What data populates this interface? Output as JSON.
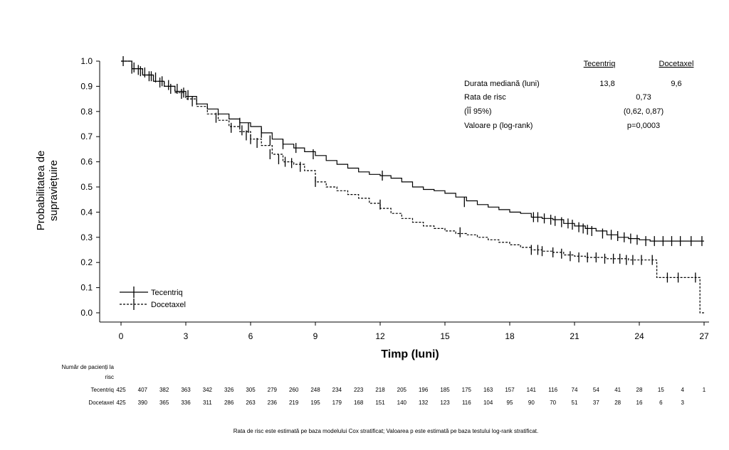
{
  "chart_data": {
    "type": "line",
    "xlabel": "Timp (luni)",
    "ylabel": [
      "Probabilitatea de",
      "supraviețuire"
    ],
    "xlim": [
      0,
      27
    ],
    "ylim": [
      0,
      1.0
    ],
    "x_ticks": [
      "0",
      "3",
      "6",
      "9",
      "12",
      "15",
      "18",
      "21",
      "24",
      "27"
    ],
    "y_ticks": [
      "0.0",
      "0.1",
      "0.2",
      "0.3",
      "0.4",
      "0.5",
      "0.6",
      "0.7",
      "0.8",
      "0.9",
      "1.0"
    ],
    "series": [
      {
        "name": "Tecentriq",
        "style": "solid",
        "x": [
          0,
          0.5,
          1,
          1.5,
          2,
          2.5,
          3,
          3.5,
          4,
          4.5,
          5,
          5.5,
          6,
          6.5,
          7,
          7.5,
          8,
          8.5,
          9,
          9.5,
          10,
          10.5,
          11,
          11.5,
          12,
          12.5,
          13,
          13.5,
          14,
          14.5,
          15,
          15.5,
          16,
          16.5,
          17,
          17.5,
          18,
          18.5,
          19,
          19.5,
          20,
          20.5,
          21,
          21.5,
          22,
          22.5,
          23,
          23.5,
          24,
          24.5,
          25,
          25.5,
          26,
          26.5,
          27
        ],
        "y": [
          1.0,
          0.97,
          0.945,
          0.92,
          0.9,
          0.88,
          0.86,
          0.83,
          0.81,
          0.79,
          0.77,
          0.755,
          0.74,
          0.715,
          0.69,
          0.67,
          0.655,
          0.64,
          0.625,
          0.605,
          0.59,
          0.575,
          0.56,
          0.55,
          0.545,
          0.535,
          0.52,
          0.5,
          0.49,
          0.485,
          0.475,
          0.46,
          0.445,
          0.43,
          0.42,
          0.41,
          0.4,
          0.395,
          0.38,
          0.375,
          0.37,
          0.355,
          0.345,
          0.335,
          0.325,
          0.31,
          0.3,
          0.295,
          0.29,
          0.285,
          0.285,
          0.285,
          0.285,
          0.285,
          0.285
        ],
        "censor_x": [
          0.1,
          0.6,
          0.8,
          1.1,
          1.4,
          1.6,
          1.9,
          2.2,
          2.6,
          2.9,
          3.1,
          5.5,
          5.9,
          6.5,
          6.9,
          7.5,
          8.1,
          8.9,
          12.1,
          15.9,
          19.1,
          19.3,
          19.6,
          19.9,
          20.1,
          20.4,
          20.7,
          20.9,
          21.2,
          21.4,
          21.6,
          21.8,
          22.3,
          22.7,
          23.0,
          23.3,
          23.6,
          23.9,
          24.3,
          24.7,
          25.1,
          25.5,
          25.9,
          26.4,
          26.9
        ],
        "censor_y": [
          1.0,
          0.975,
          0.965,
          0.955,
          0.94,
          0.935,
          0.92,
          0.905,
          0.89,
          0.875,
          0.865,
          0.755,
          0.735,
          0.715,
          0.685,
          0.67,
          0.655,
          0.63,
          0.545,
          0.44,
          0.38,
          0.38,
          0.375,
          0.37,
          0.365,
          0.36,
          0.355,
          0.35,
          0.34,
          0.335,
          0.33,
          0.325,
          0.315,
          0.31,
          0.305,
          0.3,
          0.295,
          0.29,
          0.285,
          0.285,
          0.285,
          0.285,
          0.285,
          0.285,
          0.285
        ]
      },
      {
        "name": "Docetaxel",
        "style": "dashed",
        "x": [
          0,
          0.5,
          1,
          1.5,
          2,
          2.5,
          3,
          3.5,
          4,
          4.5,
          5,
          5.5,
          6,
          6.5,
          7,
          7.5,
          8,
          8.5,
          9,
          9.5,
          10,
          10.5,
          11,
          11.5,
          12,
          12.5,
          13,
          13.5,
          14,
          14.5,
          15,
          15.5,
          16,
          16.5,
          17,
          17.5,
          18,
          18.5,
          19,
          19.5,
          20,
          20.5,
          21,
          21.5,
          22,
          22.5,
          23,
          23.5,
          24,
          24.5,
          24.8,
          24.81,
          25.5,
          26,
          26.5,
          26.8,
          26.81,
          27
        ],
        "y": [
          1.0,
          0.97,
          0.945,
          0.92,
          0.9,
          0.875,
          0.85,
          0.82,
          0.79,
          0.765,
          0.74,
          0.72,
          0.69,
          0.665,
          0.63,
          0.6,
          0.59,
          0.565,
          0.52,
          0.5,
          0.485,
          0.47,
          0.455,
          0.435,
          0.415,
          0.395,
          0.375,
          0.36,
          0.345,
          0.335,
          0.325,
          0.315,
          0.31,
          0.3,
          0.29,
          0.28,
          0.27,
          0.26,
          0.25,
          0.245,
          0.24,
          0.23,
          0.225,
          0.22,
          0.22,
          0.215,
          0.215,
          0.21,
          0.21,
          0.21,
          0.2,
          0.14,
          0.14,
          0.14,
          0.14,
          0.14,
          0.0,
          0.0
        ],
        "censor_x": [
          0.5,
          0.9,
          1.3,
          1.8,
          2.3,
          2.8,
          3.3,
          4.4,
          5.1,
          5.6,
          5.8,
          6.0,
          6.3,
          6.9,
          7.3,
          7.6,
          7.9,
          8.3,
          9.0,
          12.0,
          15.7,
          19.0,
          19.3,
          19.5,
          20.0,
          20.4,
          20.8,
          21.2,
          21.6,
          22.0,
          22.4,
          22.8,
          23.1,
          23.4,
          23.7,
          24.1,
          24.6,
          25.3,
          25.8,
          26.6
        ],
        "censor_y": [
          0.97,
          0.96,
          0.94,
          0.915,
          0.89,
          0.87,
          0.84,
          0.775,
          0.735,
          0.725,
          0.705,
          0.69,
          0.675,
          0.63,
          0.61,
          0.6,
          0.595,
          0.58,
          0.52,
          0.43,
          0.32,
          0.25,
          0.25,
          0.245,
          0.24,
          0.235,
          0.225,
          0.22,
          0.22,
          0.22,
          0.215,
          0.215,
          0.215,
          0.21,
          0.21,
          0.21,
          0.21,
          0.14,
          0.14,
          0.14
        ]
      }
    ],
    "legend": [
      "Tecentriq",
      "Docetaxel"
    ],
    "legend_position": "bottom-left"
  },
  "stats": {
    "col_tecentriq": "Tecentriq",
    "col_docetaxel": "Docetaxel",
    "rows": [
      {
        "label": "Durata mediană (luni)",
        "tecentriq": "13,8",
        "docetaxel": "9,6",
        "combined": ""
      },
      {
        "label": "Rata de risc",
        "tecentriq": "",
        "docetaxel": "",
        "combined": "0,73"
      },
      {
        "label": "(ÎÎ 95%)",
        "tecentriq": "",
        "docetaxel": "",
        "combined": "(0,62, 0,87)"
      },
      {
        "label": "Valoare p (log-rank)",
        "tecentriq": "",
        "docetaxel": "",
        "combined": "p=0,0003"
      }
    ]
  },
  "risk_table": {
    "title_line1": "Număr de pacienți la",
    "title_line2": "risc",
    "rows": [
      {
        "label": "Tecentriq",
        "values": [
          "425",
          "407",
          "382",
          "363",
          "342",
          "326",
          "305",
          "279",
          "260",
          "248",
          "234",
          "223",
          "218",
          "205",
          "196",
          "185",
          "175",
          "163",
          "157",
          "141",
          "116",
          "74",
          "54",
          "41",
          "28",
          "15",
          "4",
          "1"
        ]
      },
      {
        "label": "Docetaxel",
        "values": [
          "425",
          "390",
          "365",
          "336",
          "311",
          "286",
          "263",
          "236",
          "219",
          "195",
          "179",
          "168",
          "151",
          "140",
          "132",
          "123",
          "116",
          "104",
          "95",
          "90",
          "70",
          "51",
          "37",
          "28",
          "16",
          "6",
          "3",
          ""
        ]
      }
    ]
  },
  "footnote": "Rata de risc este estimată pe baza modelului Cox stratificat; Valoarea p este estimată pe baza testului log-rank stratificat."
}
